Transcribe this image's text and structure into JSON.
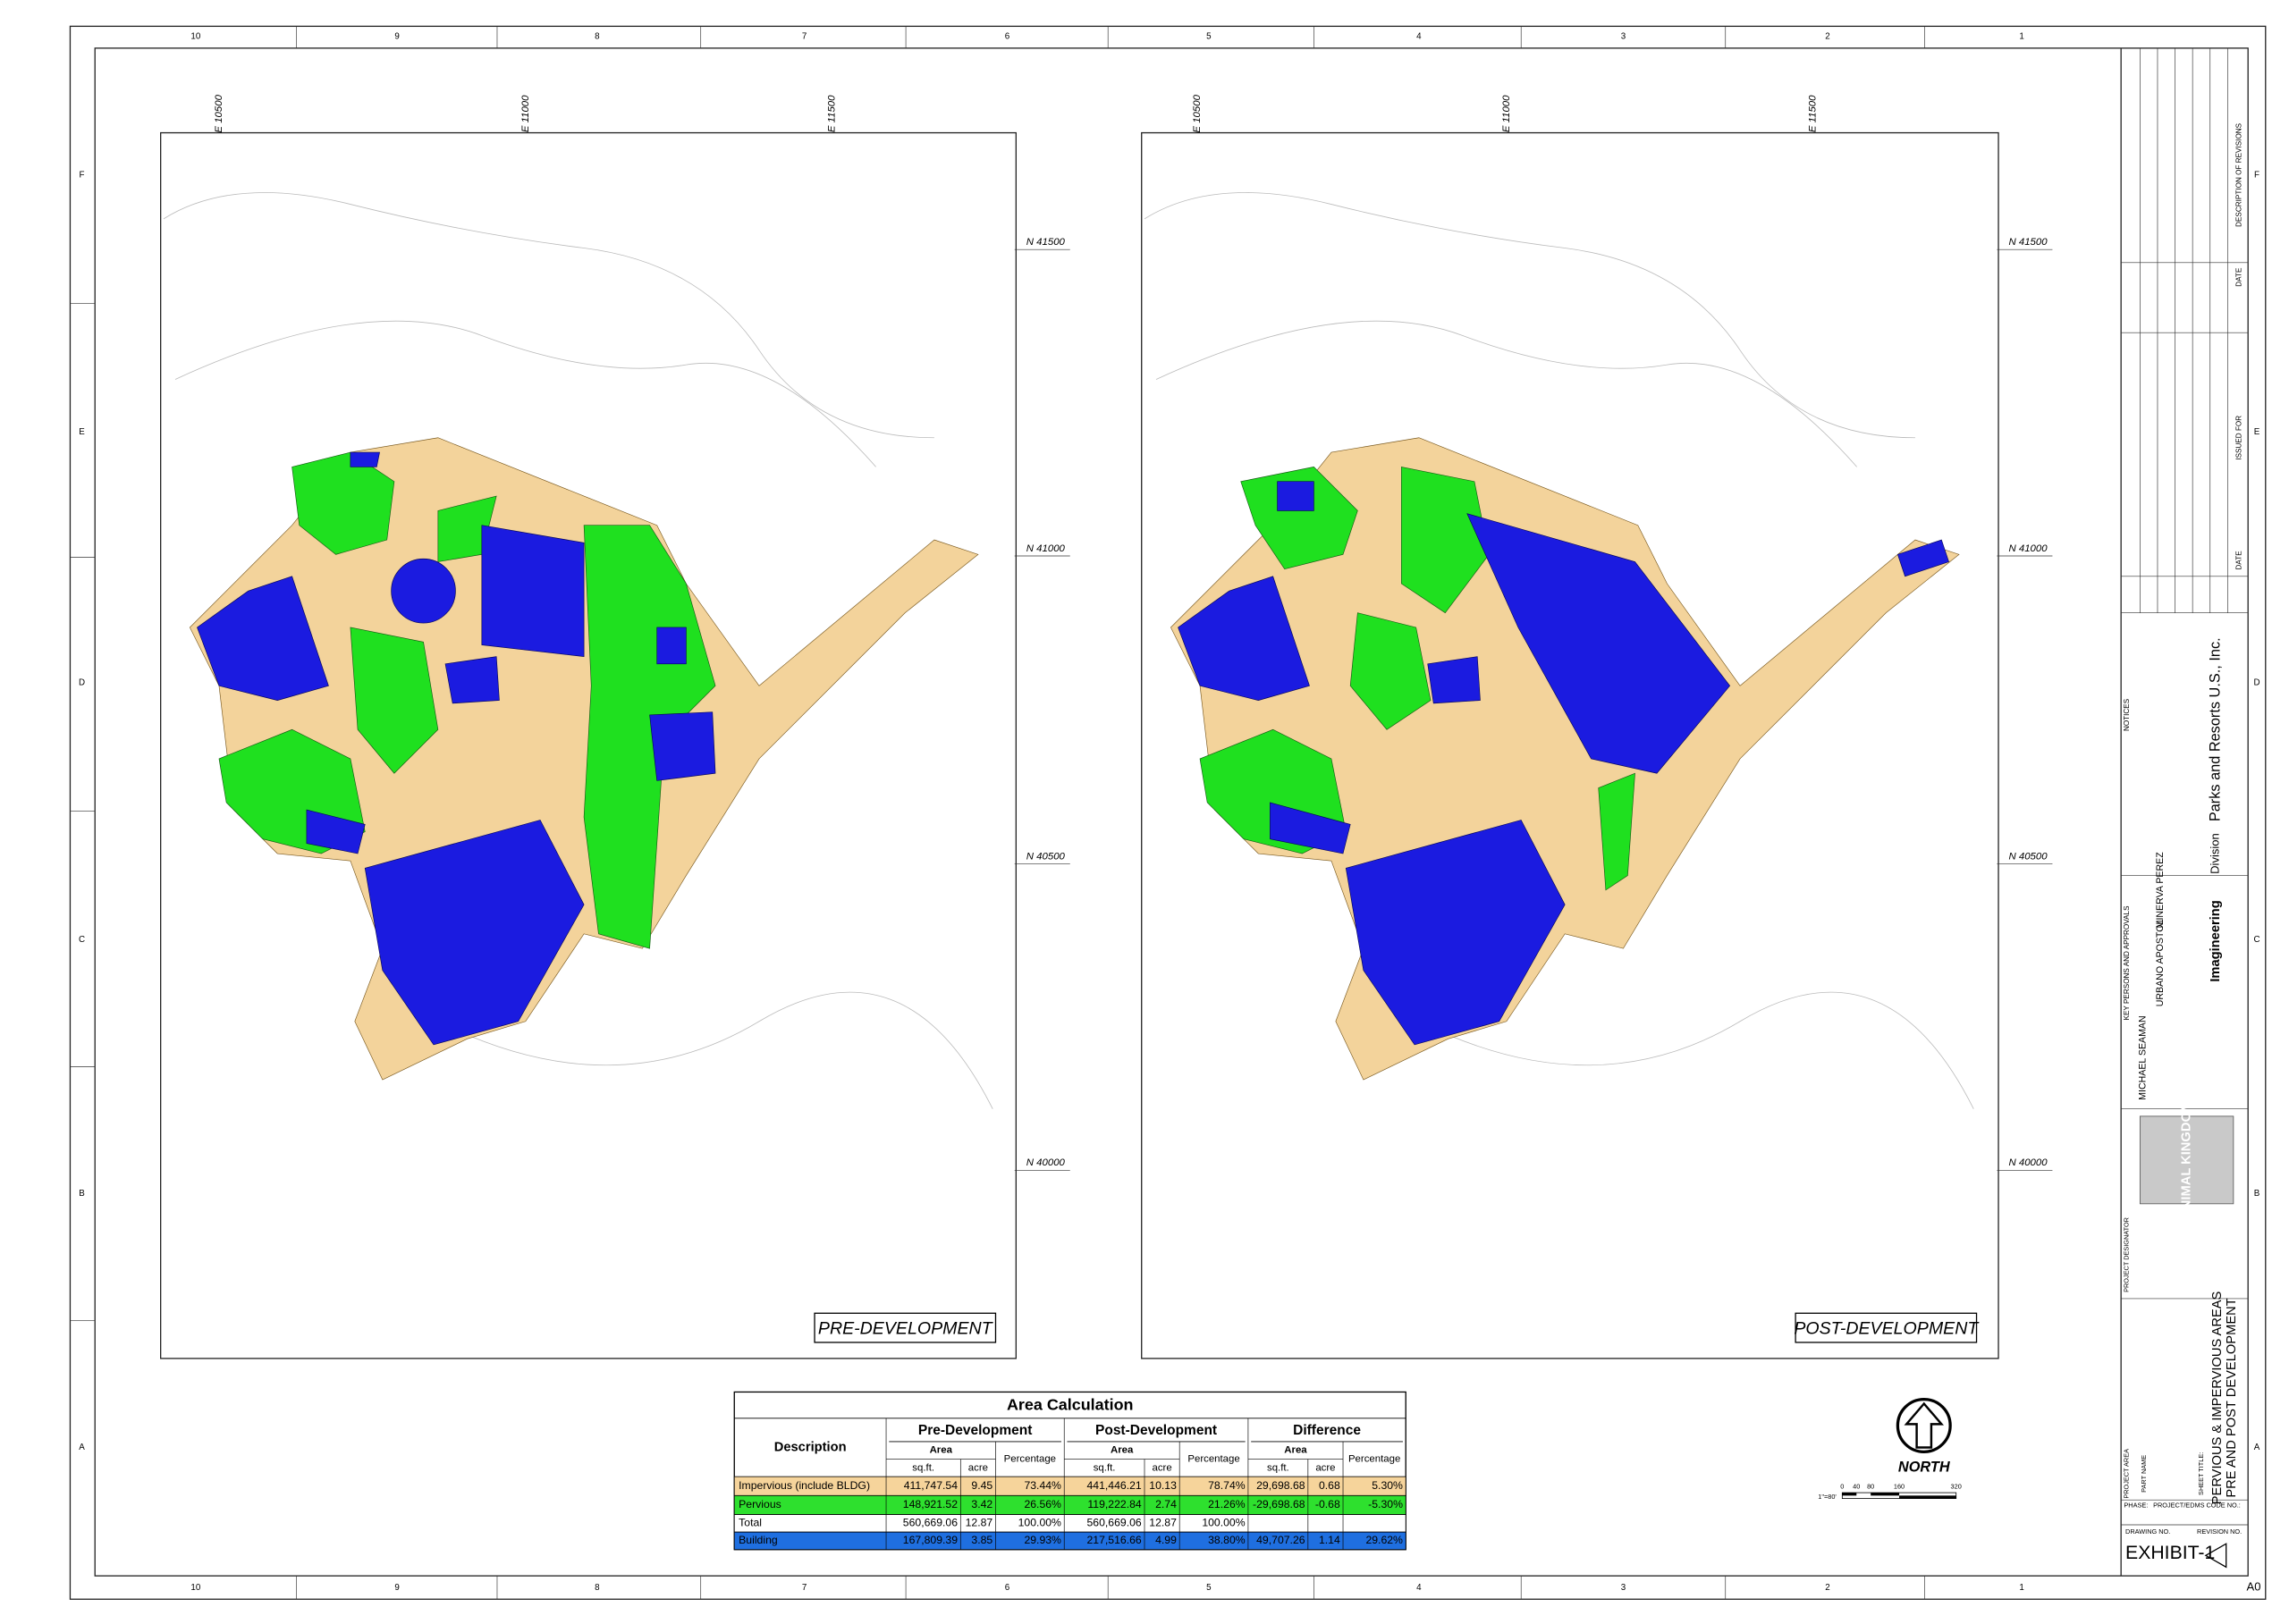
{
  "border": {
    "columns": [
      "10",
      "9",
      "8",
      "7",
      "6",
      "5",
      "4",
      "3",
      "2",
      "1"
    ],
    "rows": [
      "F",
      "E",
      "D",
      "C",
      "B",
      "A"
    ]
  },
  "panels": [
    {
      "title": "PRE-DEVELOPMENT",
      "eastings": [
        "E 10500",
        "E 11000",
        "E 11500"
      ],
      "northings": [
        "N 41500",
        "N 41000",
        "N 40500",
        "N 40000"
      ]
    },
    {
      "title": "POST-DEVELOPMENT",
      "eastings": [
        "E 10500",
        "E 11000",
        "E 11500"
      ],
      "northings": [
        "N 41500",
        "N 41000",
        "N 40500",
        "N 40000"
      ]
    }
  ],
  "table": {
    "title": "Area Calculation",
    "description": "Description",
    "groups": [
      "Pre-Development",
      "Post-Development",
      "Difference"
    ],
    "area": "Area",
    "percentage": "Percentage",
    "sqft": "sq.ft.",
    "acre": "acre",
    "rows": [
      {
        "label": "Impervious (include BLDG)",
        "cells": [
          "411,747.54",
          "9.45",
          "73.44%",
          "441,446.21",
          "10.13",
          "78.74%",
          "29,698.68",
          "0.68",
          "5.30%"
        ]
      },
      {
        "label": "Pervious",
        "cells": [
          "148,921.52",
          "3.42",
          "26.56%",
          "119,222.84",
          "2.74",
          "21.26%",
          "-29,698.68",
          "-0.68",
          "-5.30%"
        ]
      },
      {
        "label": "Total",
        "cells": [
          "560,669.06",
          "12.87",
          "100.00%",
          "560,669.06",
          "12.87",
          "100.00%"
        ]
      },
      {
        "label": "Building",
        "cells": [
          "167,809.39",
          "3.85",
          "29.93%",
          "217,516.66",
          "4.99",
          "38.80%",
          "49,707.26",
          "1.14",
          "29.62%"
        ]
      }
    ]
  },
  "north": {
    "label": "NORTH",
    "scale_ticks": [
      "0",
      "40",
      "80",
      "160",
      "320"
    ],
    "scale_note": "1\"=80'"
  },
  "title_block": {
    "revisions": "DESCRIPTION OF REVISIONS",
    "date": "DATE",
    "issued_for": "ISSUED FOR",
    "notices": "NOTICES",
    "key_persons": "KEY PERSONS AND APPROVALS",
    "designer": "MICHAEL SEAMAN",
    "drafter": "URBANO APOSTOL",
    "checker": "MINERVA PEREZ",
    "company": "Parks and Resorts U.S., Inc.",
    "imagineering": "Imagineering",
    "division": "Division",
    "project_designator": "PROJECT DESIGNATOR",
    "logo": "ANIMAL KINGDOM",
    "project_area": "PROJECT AREA",
    "part_name": "PART NAME",
    "sheet_title_label": "SHEET TITLE:",
    "sheet_title_1": "PERVIOUS & IMPERVIOUS AREAS",
    "sheet_title_2": "PRE AND POST DEVELOPMENT",
    "phase": "PHASE:",
    "code": "PROJECT/EDMS CODE NO.:",
    "drawing_no": "DRAWING NO.",
    "revision_no": "REVISION NO.",
    "exhibit": "EXHIBIT-1",
    "sheet_size": "A0"
  }
}
